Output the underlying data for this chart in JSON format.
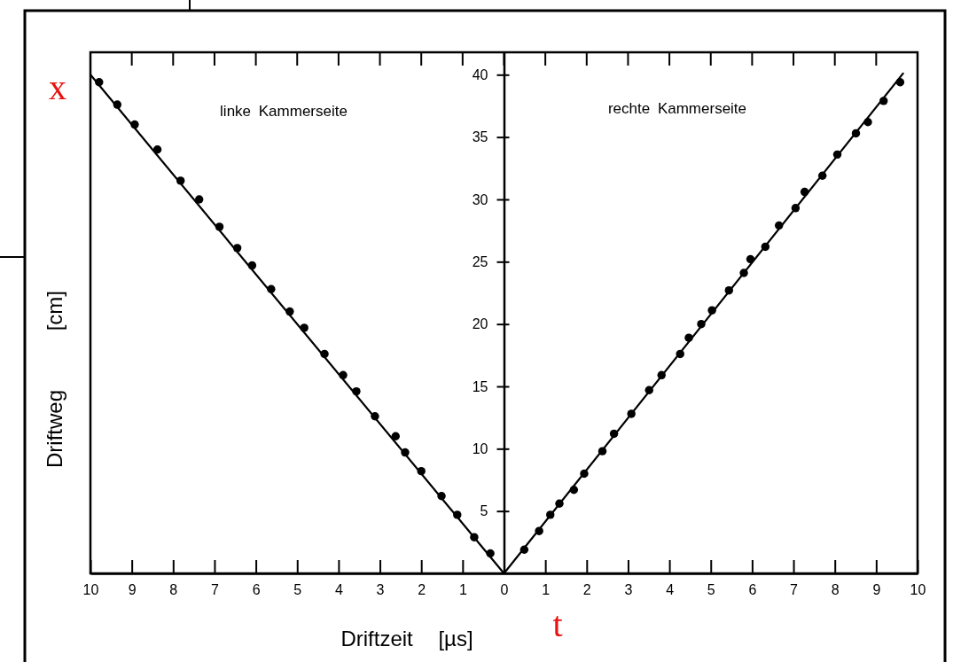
{
  "chart_data": {
    "type": "scatter",
    "xlabel": "Driftzeit [µs]",
    "ylabel": "Driftweg [cm]",
    "xlim": [
      -10,
      10
    ],
    "ylim": [
      0,
      41.8
    ],
    "xticks": [
      {
        "value": -10,
        "label": "10"
      },
      {
        "value": -9,
        "label": "9"
      },
      {
        "value": -8,
        "label": "8"
      },
      {
        "value": -7,
        "label": "7"
      },
      {
        "value": -6,
        "label": "6"
      },
      {
        "value": -5,
        "label": "5"
      },
      {
        "value": -4,
        "label": "4"
      },
      {
        "value": -3,
        "label": "3"
      },
      {
        "value": -2,
        "label": "2"
      },
      {
        "value": -1,
        "label": "1"
      },
      0,
      1,
      2,
      3,
      4,
      5,
      6,
      7,
      8,
      9,
      10
    ],
    "yticks": [
      5,
      10,
      15,
      20,
      25,
      30,
      35,
      40
    ],
    "series": [
      {
        "color": "#000000",
        "marker": "circle",
        "x": [
          -9.79,
          -9.35,
          -8.93,
          -8.38,
          -7.82,
          -7.37,
          -6.88,
          -6.45,
          -6.09,
          -5.63,
          -5.18,
          -4.83,
          -4.34,
          -3.89,
          -3.57,
          -3.12,
          -2.62,
          -2.39,
          -2.0,
          -1.51,
          -1.13,
          -0.72,
          -0.33
        ],
        "values": [
          39.4,
          37.6,
          36.0,
          34.0,
          31.5,
          30.0,
          27.8,
          26.1,
          24.7,
          22.8,
          21.0,
          19.7,
          17.6,
          15.9,
          14.6,
          12.6,
          11.0,
          9.7,
          8.2,
          6.2,
          4.7,
          2.9,
          1.6
        ]
      },
      {
        "color": "#000000",
        "marker": "circle",
        "x": [
          0.49,
          0.85,
          1.12,
          1.34,
          1.69,
          1.94,
          2.38,
          2.66,
          3.08,
          3.51,
          3.81,
          4.26,
          4.47,
          4.77,
          5.03,
          5.44,
          5.8,
          5.96,
          6.32,
          6.65,
          7.05,
          7.27,
          7.7,
          8.06,
          8.51,
          8.8,
          9.18,
          9.58
        ],
        "values": [
          1.9,
          3.4,
          4.7,
          5.6,
          6.7,
          8.0,
          9.8,
          11.2,
          12.8,
          14.7,
          15.9,
          17.6,
          18.9,
          20.0,
          21.1,
          22.7,
          24.1,
          25.2,
          26.2,
          27.9,
          29.3,
          30.6,
          31.9,
          33.6,
          35.3,
          36.2,
          37.9,
          39.4
        ]
      },
      {
        "type": "line",
        "color": "#000000",
        "marker": "none",
        "x": [
          -10,
          0
        ],
        "values": [
          40,
          0
        ]
      },
      {
        "type": "line",
        "color": "#000000",
        "marker": "none",
        "x": [
          0,
          9.65
        ],
        "values": [
          0,
          40.1
        ]
      }
    ],
    "annotations": [
      "linke Kammerseite",
      "rechte Kammerseite",
      "x",
      "t"
    ]
  }
}
